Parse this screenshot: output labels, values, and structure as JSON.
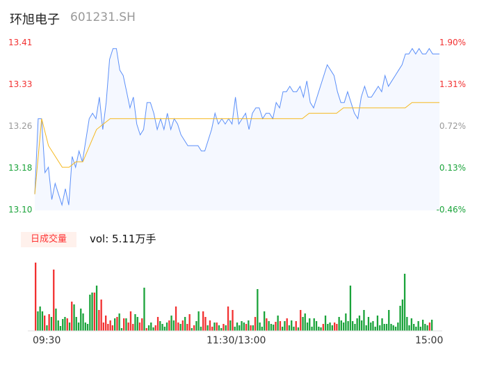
{
  "header": {
    "name": "环旭电子",
    "code": "601231.SH"
  },
  "price_axis": {
    "labels": [
      "13.41",
      "13.33",
      "13.26",
      "13.18",
      "13.10"
    ],
    "colors": [
      "#f23030",
      "#f23030",
      "#999999",
      "#1aa33a",
      "#1aa33a"
    ]
  },
  "pct_axis": {
    "labels": [
      "1.90%",
      "1.31%",
      "0.72%",
      "0.13%",
      "-0.46%"
    ],
    "colors": [
      "#f23030",
      "#f23030",
      "#999999",
      "#1aa33a",
      "#1aa33a"
    ]
  },
  "volume": {
    "badge": "日成交量",
    "label": "vol: 5.11万手"
  },
  "time_axis": [
    "09:30",
    "11:30/13:00",
    "15:00"
  ],
  "colors": {
    "price": "#5b8ff9",
    "avg": "#f5b81e",
    "up": "#f23030",
    "down": "#1aa33a"
  },
  "chart_data": {
    "type": "line",
    "ylim": [
      13.1,
      13.41
    ],
    "price": [
      13.13,
      13.27,
      13.27,
      13.17,
      13.18,
      13.12,
      13.15,
      13.13,
      13.11,
      13.14,
      13.11,
      13.2,
      13.18,
      13.21,
      13.19,
      13.23,
      13.27,
      13.28,
      13.27,
      13.31,
      13.25,
      13.3,
      13.38,
      13.4,
      13.4,
      13.36,
      13.35,
      13.32,
      13.29,
      13.31,
      13.26,
      13.24,
      13.25,
      13.3,
      13.3,
      13.28,
      13.25,
      13.27,
      13.25,
      13.28,
      13.25,
      13.27,
      13.26,
      13.24,
      13.23,
      13.22,
      13.22,
      13.22,
      13.22,
      13.21,
      13.21,
      13.23,
      13.25,
      13.28,
      13.26,
      13.27,
      13.26,
      13.27,
      13.26,
      13.31,
      13.26,
      13.27,
      13.28,
      13.25,
      13.28,
      13.29,
      13.29,
      13.27,
      13.28,
      13.28,
      13.27,
      13.3,
      13.29,
      13.32,
      13.32,
      13.33,
      13.32,
      13.32,
      13.33,
      13.31,
      13.34,
      13.3,
      13.29,
      13.31,
      13.33,
      13.35,
      13.37,
      13.36,
      13.35,
      13.32,
      13.3,
      13.3,
      13.32,
      13.3,
      13.28,
      13.27,
      13.31,
      13.33,
      13.31,
      13.31,
      13.32,
      13.33,
      13.32,
      13.35,
      13.33,
      13.34,
      13.35,
      13.36,
      13.37,
      13.39,
      13.39,
      13.4,
      13.39,
      13.4,
      13.39,
      13.39,
      13.4,
      13.39,
      13.39,
      13.39
    ],
    "avg": [
      13.13,
      13.27,
      13.22,
      13.2,
      13.18,
      13.18,
      13.19,
      13.19,
      13.22,
      13.25,
      13.26,
      13.27,
      13.27,
      13.27,
      13.27,
      13.27,
      13.27,
      13.27,
      13.27,
      13.27,
      13.27,
      13.27,
      13.27,
      13.27,
      13.27,
      13.27,
      13.27,
      13.27,
      13.27,
      13.27,
      13.27,
      13.27,
      13.27,
      13.27,
      13.27,
      13.27,
      13.27,
      13.27,
      13.27,
      13.27,
      13.28,
      13.28,
      13.28,
      13.28,
      13.28,
      13.29,
      13.29,
      13.29,
      13.29,
      13.29,
      13.29,
      13.29,
      13.29,
      13.29,
      13.29,
      13.3,
      13.3,
      13.3,
      13.3,
      13.3
    ],
    "volumes": [
      98,
      -28,
      -35,
      -28,
      22,
      -8,
      24,
      -20,
      88,
      -32,
      -15,
      -7,
      -17,
      -20,
      18,
      -12,
      42,
      -38,
      -20,
      -12,
      -32,
      -25,
      -12,
      -10,
      -52,
      -55,
      55,
      -65,
      30,
      45,
      12,
      22,
      10,
      15,
      8,
      -18,
      20,
      -25,
      -4,
      18,
      -18,
      12,
      28,
      10,
      -24,
      -20,
      12,
      18,
      -62,
      4,
      -8,
      -12,
      -5,
      8,
      20,
      -14,
      -10,
      -6,
      -12,
      15,
      -22,
      -15,
      35,
      12,
      -10,
      15,
      -20,
      10,
      24,
      -4,
      8,
      -14,
      -28,
      -6,
      28,
      20,
      -8,
      15,
      6,
      -12,
      12,
      -8,
      -4,
      10,
      -8,
      35,
      -15,
      30,
      -6,
      -12,
      -8,
      -14,
      -12,
      10,
      -15,
      8,
      -8,
      20,
      -60,
      -12,
      -6,
      -28,
      18,
      -14,
      -10,
      -9,
      13,
      -22,
      14,
      -6,
      -14,
      18,
      -8,
      -15,
      -6,
      14,
      -5,
      30,
      -20,
      -25,
      -12,
      -18,
      -6,
      -18,
      -14,
      -6,
      -5,
      10,
      -22,
      -10,
      -12,
      -8,
      12,
      10,
      -20,
      -15,
      -12,
      -25,
      -14,
      -65,
      -14,
      -10,
      -18,
      -22,
      -15,
      -30,
      -8,
      -20,
      -12,
      -14,
      -6,
      -22,
      -8,
      -18,
      -10,
      -10,
      -30,
      -10,
      -8,
      -6,
      -12,
      -36,
      -45,
      -82,
      -20,
      -8,
      -18,
      -10,
      -6,
      -14,
      -6,
      -16,
      -10,
      -8,
      12,
      -16
    ],
    "xlabels": [
      "09:30",
      "11:30/13:00",
      "15:00"
    ]
  }
}
